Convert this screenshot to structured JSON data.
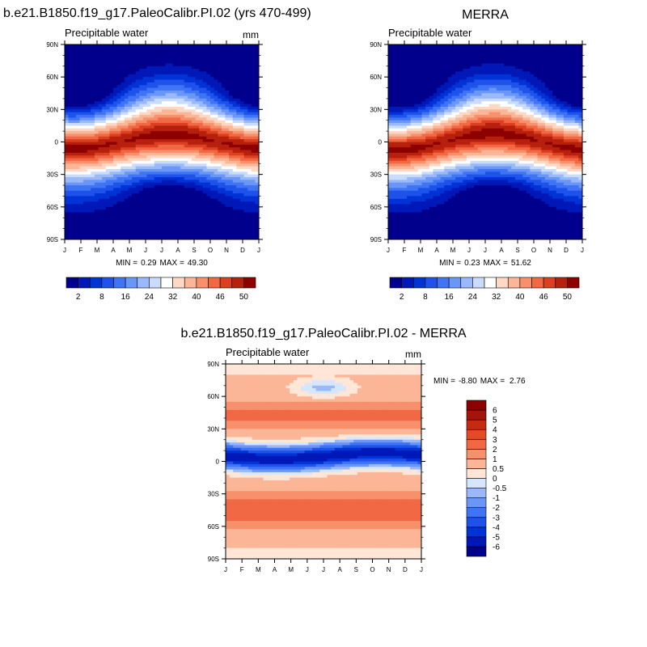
{
  "figure": {
    "title_left": "b.e21.B1850.f19_g17.PaleoCalibr.PI.02 (yrs 470-499)",
    "title_right": "MERRA",
    "title_diff": "b.e21.B1850.f19_g17.PaleoCalibr.PI.02 - MERRA"
  },
  "chart_data": [
    {
      "type": "heatmap",
      "panel": "model",
      "title": "b.e21.B1850.f19_g17.PaleoCalibr.PI.02 (yrs 470-499)",
      "field_label": "Precipitable water",
      "units": "mm",
      "x_ticks": [
        "J",
        "F",
        "M",
        "A",
        "M",
        "J",
        "J",
        "A",
        "S",
        "O",
        "N",
        "D",
        "J"
      ],
      "y_ticks": [
        "90N",
        "60N",
        "30N",
        "0",
        "30S",
        "60S",
        "90S"
      ],
      "ylim": [
        -90,
        90
      ],
      "min": "0.29",
      "max": "49.30",
      "stats_min_label": "MIN =",
      "stats_max_label": "MAX =",
      "levels": [
        2,
        5,
        8,
        12,
        16,
        20,
        24,
        28,
        32,
        36,
        40,
        43,
        46,
        48,
        50
      ],
      "colorbar_labels": [
        "2",
        "8",
        "16",
        "24",
        "32",
        "40",
        "46",
        "50"
      ],
      "colors": [
        "#00008c",
        "#0018b8",
        "#0033d6",
        "#1e52ea",
        "#3f74f4",
        "#6a96f8",
        "#9ab9fb",
        "#cadcfc",
        "#ffffff",
        "#fdd8c4",
        "#fbb597",
        "#f7906b",
        "#f06844",
        "#dc4020",
        "#b8200e",
        "#8c0000"
      ],
      "itcz_amp": 6
    },
    {
      "type": "heatmap",
      "panel": "obs",
      "title": "MERRA",
      "field_label": "Precipitable water",
      "units": "",
      "x_ticks": [
        "J",
        "F",
        "M",
        "A",
        "M",
        "J",
        "J",
        "A",
        "S",
        "O",
        "N",
        "D",
        "J"
      ],
      "y_ticks": [
        "90N",
        "60N",
        "30N",
        "0",
        "30S",
        "60S",
        "90S"
      ],
      "ylim": [
        -90,
        90
      ],
      "min": "0.23",
      "max": "51.62",
      "stats_min_label": "MIN =",
      "stats_max_label": "MAX =",
      "levels": [
        2,
        5,
        8,
        12,
        16,
        20,
        24,
        28,
        32,
        36,
        40,
        43,
        46,
        48,
        50
      ],
      "colorbar_labels": [
        "2",
        "8",
        "16",
        "24",
        "32",
        "40",
        "46",
        "50"
      ],
      "colors": [
        "#00008c",
        "#0018b8",
        "#0033d6",
        "#1e52ea",
        "#3f74f4",
        "#6a96f8",
        "#9ab9fb",
        "#cadcfc",
        "#ffffff",
        "#fdd8c4",
        "#fbb597",
        "#f7906b",
        "#f06844",
        "#dc4020",
        "#b8200e",
        "#8c0000"
      ],
      "itcz_amp": 7
    },
    {
      "type": "heatmap",
      "panel": "diff",
      "title": "b.e21.B1850.f19_g17.PaleoCalibr.PI.02 - MERRA",
      "field_label": "Precipitable water",
      "units": "mm",
      "x_ticks": [
        "J",
        "F",
        "M",
        "A",
        "M",
        "J",
        "J",
        "A",
        "S",
        "O",
        "N",
        "D",
        "J"
      ],
      "y_ticks": [
        "90N",
        "60N",
        "30N",
        "0",
        "30S",
        "60S",
        "90S"
      ],
      "ylim": [
        -90,
        90
      ],
      "min": "-8.80",
      "max": "2.76",
      "stats_min_label": "MIN =",
      "stats_max_label": "MAX =",
      "levels": [
        -6,
        -5,
        -4,
        -3,
        -2,
        -1,
        -0.5,
        0,
        0.5,
        1,
        2,
        3,
        4,
        5,
        6
      ],
      "colorbar_labels": [
        "-6",
        "-5",
        "-4",
        "-3",
        "-2",
        "-1",
        "-0.5",
        "0",
        "0.5",
        "1",
        "2",
        "3",
        "4",
        "5",
        "6"
      ],
      "colors": [
        "#00008c",
        "#0018b8",
        "#0033d6",
        "#1e52ea",
        "#3f74f4",
        "#6a96f8",
        "#9ab9fb",
        "#d6e6fd",
        "#ffe6d6",
        "#fbb597",
        "#f7906b",
        "#f06844",
        "#e44a24",
        "#c82a10",
        "#a41408",
        "#8c0000"
      ]
    }
  ]
}
